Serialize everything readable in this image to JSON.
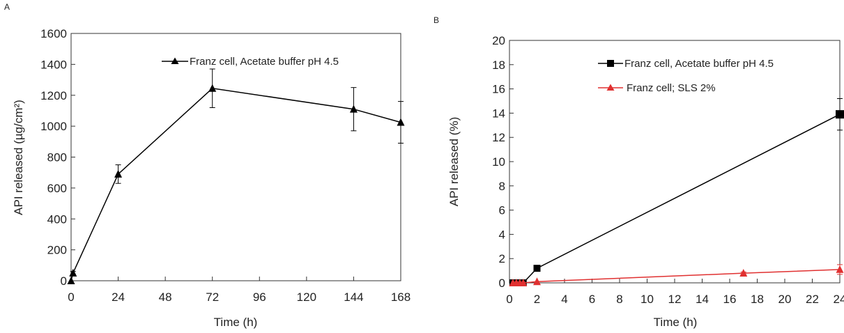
{
  "chart_data": [
    {
      "panel": "A",
      "type": "line",
      "xlabel": "Time (h)",
      "ylabel": "API released (µg/cm²)",
      "xlim": [
        0,
        168
      ],
      "ylim": [
        0,
        1600
      ],
      "xticks": [
        0,
        24,
        48,
        72,
        96,
        120,
        144,
        168
      ],
      "yticks": [
        0,
        200,
        400,
        600,
        800,
        1000,
        1200,
        1400,
        1600
      ],
      "grid": false,
      "legend_position": "top-right",
      "series": [
        {
          "name": "Franz cell, Acetate buffer pH 4.5",
          "color": "#000000",
          "marker": "triangle",
          "x": [
            0,
            1,
            24,
            72,
            144,
            168
          ],
          "y": [
            0,
            50,
            690,
            1245,
            1110,
            1025
          ],
          "error": [
            0,
            10,
            60,
            125,
            140,
            135
          ]
        }
      ]
    },
    {
      "panel": "B",
      "type": "line",
      "xlabel": "Time (h)",
      "ylabel": "API  released (%)",
      "xlim": [
        0,
        24
      ],
      "ylim": [
        0,
        20
      ],
      "xticks": [
        0,
        2,
        4,
        6,
        8,
        10,
        12,
        14,
        16,
        18,
        20,
        22,
        24
      ],
      "yticks": [
        0,
        2,
        4,
        6,
        8,
        10,
        12,
        14,
        16,
        18,
        20
      ],
      "grid": false,
      "legend_position": "top-right",
      "series": [
        {
          "name": "Franz cell, Acetate buffer pH 4.5",
          "color": "#000000",
          "marker": "square",
          "x": [
            0.25,
            0.5,
            0.75,
            1,
            2,
            24
          ],
          "y": [
            0,
            0,
            0,
            0,
            1.2,
            13.9
          ],
          "error": [
            0,
            0,
            0,
            0,
            0.1,
            1.3
          ]
        },
        {
          "name": "Franz cell; SLS 2%",
          "color": "#e03030",
          "marker": "triangle",
          "x": [
            0.25,
            0.5,
            0.75,
            1,
            2,
            17,
            24
          ],
          "y": [
            0,
            0,
            0,
            0,
            0.1,
            0.8,
            1.1
          ],
          "error": [
            0,
            0,
            0,
            0,
            0,
            0.1,
            0.4
          ]
        }
      ]
    }
  ]
}
